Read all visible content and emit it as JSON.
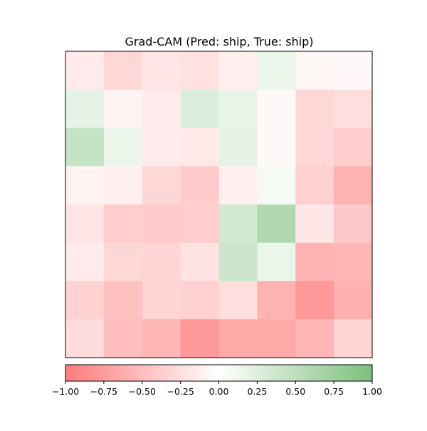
{
  "chart_data": {
    "type": "heatmap",
    "title": "Grad-CAM (Pred: ship, True: ship)",
    "rows": 8,
    "cols": 8,
    "values": [
      [
        -0.15,
        -0.3,
        -0.2,
        -0.23,
        -0.12,
        0.15,
        -0.07,
        -0.05
      ],
      [
        0.2,
        -0.1,
        -0.15,
        0.28,
        0.18,
        -0.05,
        -0.3,
        -0.25
      ],
      [
        0.45,
        0.15,
        -0.15,
        -0.16,
        0.2,
        -0.05,
        -0.3,
        -0.38
      ],
      [
        -0.1,
        -0.12,
        -0.3,
        -0.4,
        -0.12,
        0.08,
        -0.35,
        -0.58
      ],
      [
        -0.2,
        -0.38,
        -0.4,
        -0.38,
        0.35,
        0.6,
        -0.18,
        -0.42
      ],
      [
        -0.15,
        -0.3,
        -0.32,
        -0.22,
        0.4,
        0.15,
        -0.57,
        -0.55
      ],
      [
        -0.35,
        -0.48,
        -0.32,
        -0.35,
        -0.25,
        -0.58,
        -0.78,
        -0.6
      ],
      [
        -0.26,
        -0.5,
        -0.55,
        -0.78,
        -0.65,
        -0.65,
        -0.55,
        -0.32
      ]
    ],
    "colorbar": {
      "min": -1.0,
      "max": 1.0,
      "ticks": [
        "−1.00",
        "−0.75",
        "−0.50",
        "−0.25",
        "0.00",
        "0.25",
        "0.50",
        "0.75",
        "1.00"
      ],
      "colors": {
        "negative": "#ff7b7b",
        "zero": "#ffffff",
        "positive": "#7cc07c"
      }
    },
    "axes_ticks_visible": false
  }
}
